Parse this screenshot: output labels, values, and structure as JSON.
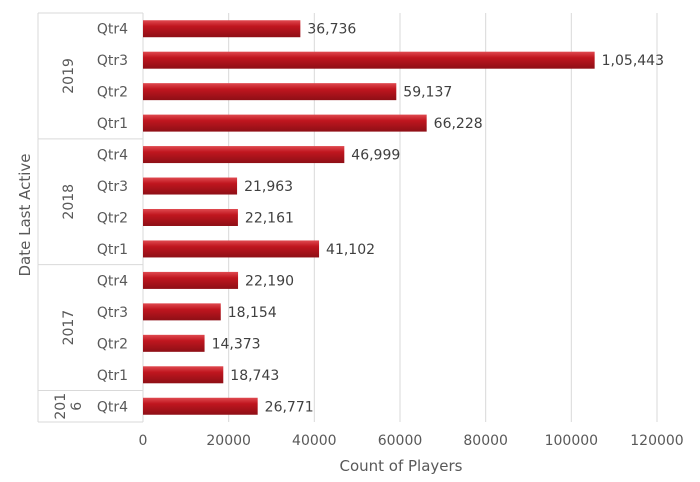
{
  "chart_data": {
    "type": "bar",
    "orientation": "horizontal",
    "xlabel": "Count of Players",
    "ylabel": "Date Last Active",
    "xlim": [
      0,
      120000
    ],
    "xticks": [
      "0",
      "20000",
      "40000",
      "60000",
      "80000",
      "100000",
      "120000"
    ],
    "grid": true,
    "legend": "none",
    "bar_color": "#c0161f",
    "groups": [
      {
        "label_lines": [
          "2019"
        ],
        "categories": [
          "Qtr4",
          "Qtr3",
          "Qtr2",
          "Qtr1"
        ],
        "values": [
          36736,
          105443,
          59137,
          66228
        ],
        "data_labels": [
          "36,736",
          "1,05,443",
          "59,137",
          "66,228"
        ]
      },
      {
        "label_lines": [
          "2018"
        ],
        "categories": [
          "Qtr4",
          "Qtr3",
          "Qtr2",
          "Qtr1"
        ],
        "values": [
          46999,
          21963,
          22161,
          41102
        ],
        "data_labels": [
          "46,999",
          "21,963",
          "22,161",
          "41,102"
        ]
      },
      {
        "label_lines": [
          "2017"
        ],
        "categories": [
          "Qtr4",
          "Qtr3",
          "Qtr2",
          "Qtr1"
        ],
        "values": [
          22190,
          18154,
          14373,
          18743
        ],
        "data_labels": [
          "22,190",
          "18,154",
          "14,373",
          "18,743"
        ]
      },
      {
        "label_lines": [
          "201",
          "6"
        ],
        "categories": [
          "Qtr4"
        ],
        "values": [
          26771
        ],
        "data_labels": [
          "26,771"
        ]
      }
    ]
  }
}
